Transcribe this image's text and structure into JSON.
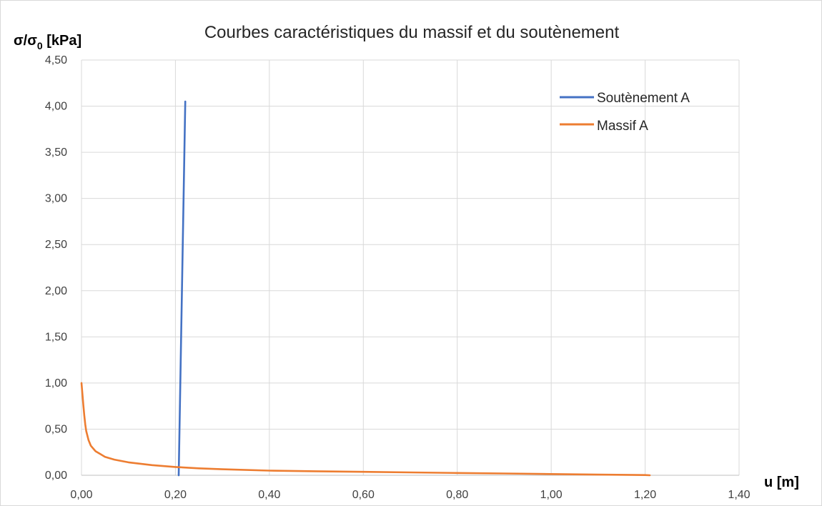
{
  "chart_data": {
    "type": "line",
    "title": "Courbes caractéristiques du massif et du soutènement",
    "ylabel": "σ/σ",
    "ylabel_subscript": "0",
    "ylabel_unit": " [kPa]",
    "xlabel": "u [m]",
    "xlim": [
      0,
      1.4
    ],
    "ylim": [
      0,
      4.5
    ],
    "x_ticks": [
      0,
      0.2,
      0.4,
      0.6,
      0.8,
      1.0,
      1.2,
      1.4
    ],
    "x_tick_labels": [
      "0,00",
      "0,20",
      "0,40",
      "0,60",
      "0,80",
      "1,00",
      "1,20",
      "1,40"
    ],
    "y_ticks": [
      0,
      0.5,
      1.0,
      1.5,
      2.0,
      2.5,
      3.0,
      3.5,
      4.0,
      4.5
    ],
    "y_tick_labels": [
      "0,00",
      "0,50",
      "1,00",
      "1,50",
      "2,00",
      "2,50",
      "3,00",
      "3,50",
      "4,00",
      "4,50"
    ],
    "grid": true,
    "legend_position": "top-right",
    "series": [
      {
        "name": "Soutènement A",
        "color": "#4472c4",
        "x": [
          0.207,
          0.221
        ],
        "y": [
          0.0,
          4.05
        ]
      },
      {
        "name": "Massif A",
        "color": "#ed7d31",
        "x": [
          0.0,
          0.002,
          0.004,
          0.006,
          0.008,
          0.01,
          0.015,
          0.02,
          0.03,
          0.04,
          0.05,
          0.07,
          0.1,
          0.15,
          0.2,
          0.25,
          0.3,
          0.4,
          0.5,
          0.6,
          0.7,
          0.8,
          0.9,
          1.0,
          1.1,
          1.2,
          1.21
        ],
        "y": [
          1.0,
          0.88,
          0.76,
          0.65,
          0.55,
          0.48,
          0.38,
          0.32,
          0.26,
          0.23,
          0.2,
          0.17,
          0.14,
          0.11,
          0.09,
          0.075,
          0.065,
          0.05,
          0.043,
          0.037,
          0.031,
          0.025,
          0.019,
          0.013,
          0.007,
          0.002,
          0.0
        ]
      }
    ]
  }
}
